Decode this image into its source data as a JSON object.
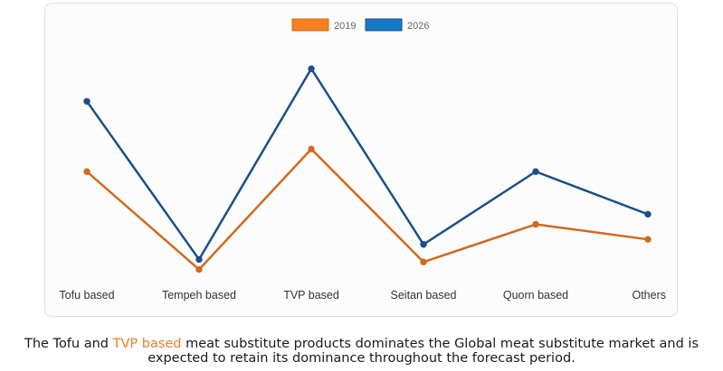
{
  "chart_data": {
    "type": "line",
    "categories": [
      "Tofu based",
      "Tempeh based",
      "TVP based",
      "Seitan based",
      "Quorn based",
      "Others"
    ],
    "series": [
      {
        "name": "2019",
        "color": "#d2691e",
        "values": [
          46,
          7,
          55,
          10,
          25,
          19
        ]
      },
      {
        "name": "2026",
        "color": "#1b4f8c",
        "values": [
          74,
          11,
          87,
          17,
          46,
          29
        ]
      }
    ],
    "legend_colors": {
      "2019": "#fa7f20",
      "2026": "#1879c6"
    },
    "ylim": [
      0,
      100
    ],
    "title": "",
    "xlabel": "",
    "ylabel": "",
    "legend_position": "top-center",
    "grid": false
  },
  "caption": {
    "part1": "The Tofu and",
    "highlight": "TVP based",
    "part2": "meat substitute products dominates the Global meat substitute market and is",
    "line2": "expected to retain its dominance throughout the forecast period."
  }
}
